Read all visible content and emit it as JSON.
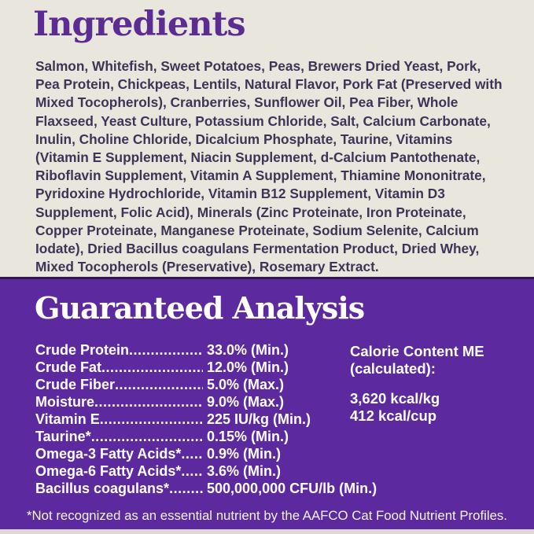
{
  "colors": {
    "background_beige": "#e9e6de",
    "heading_purple": "#5b2c91",
    "body_text": "#3f3356",
    "panel_purple": "#5c2a9e",
    "panel_top_edge": "#2f1750",
    "panel_text": "#ffffff"
  },
  "ingredients": {
    "title": "Ingredients",
    "text": "Salmon, Whitefish, Sweet Potatoes, Peas, Brewers Dried Yeast, Pork, Pea Protein, Chickpeas, Lentils, Natural Flavor, Pork Fat (Preserved with Mixed Tocopherols), Cranberries, Sunflower Oil, Pea Fiber, Whole Flaxseed, Yeast Culture, Potassium Chloride, Salt, Calcium Carbonate, Inulin, Choline Chloride, Dicalcium Phosphate, Taurine, Vitamins (Vitamin E Supplement, Niacin Supplement, d-Calcium Pantothenate, Riboflavin Supplement, Vitamin A Supplement, Thiamine Mononitrate, Pyridoxine Hydrochloride, Vitamin B12 Supplement, Vitamin D3 Supplement, Folic Acid), Minerals (Zinc Proteinate, Iron Proteinate, Copper Proteinate, Manganese Proteinate, Sodium Selenite, Calcium Iodate), Dried Bacillus coagulans Fermentation Product, Dried Whey, Mixed Tocopherols (Preservative), Rosemary Extract."
  },
  "guaranteed_analysis": {
    "title": "Guaranteed Analysis",
    "leader_dots": "................................................................",
    "rows": [
      {
        "label": "Crude Protein",
        "value": "33.0% (Min.)"
      },
      {
        "label": "Crude Fat",
        "value": "12.0% (Min.)"
      },
      {
        "label": "Crude Fiber",
        "value": "5.0% (Max.)"
      },
      {
        "label": "Moisture",
        "value": "9.0% (Max.)"
      },
      {
        "label": "Vitamin E",
        "value": "225 IU/kg (Min.)"
      },
      {
        "label": "Taurine*",
        "value": "0.15% (Min.)"
      },
      {
        "label": "Omega-3 Fatty Acids*",
        "value": "0.9% (Min.)"
      },
      {
        "label": "Omega-6 Fatty Acids*",
        "value": "3.6% (Min.)"
      },
      {
        "label": "Bacillus coagulans*",
        "value": "500,000,000 CFU/lb (Min.)"
      }
    ],
    "calorie": {
      "heading_line1": "Calorie Content ME",
      "heading_line2": "(calculated):",
      "value_line1": "3,620 kcal/kg",
      "value_line2": "412 kcal/cup"
    },
    "footnote": "*Not recognized as an essential nutrient by the AAFCO Cat Food Nutrient Profiles."
  }
}
